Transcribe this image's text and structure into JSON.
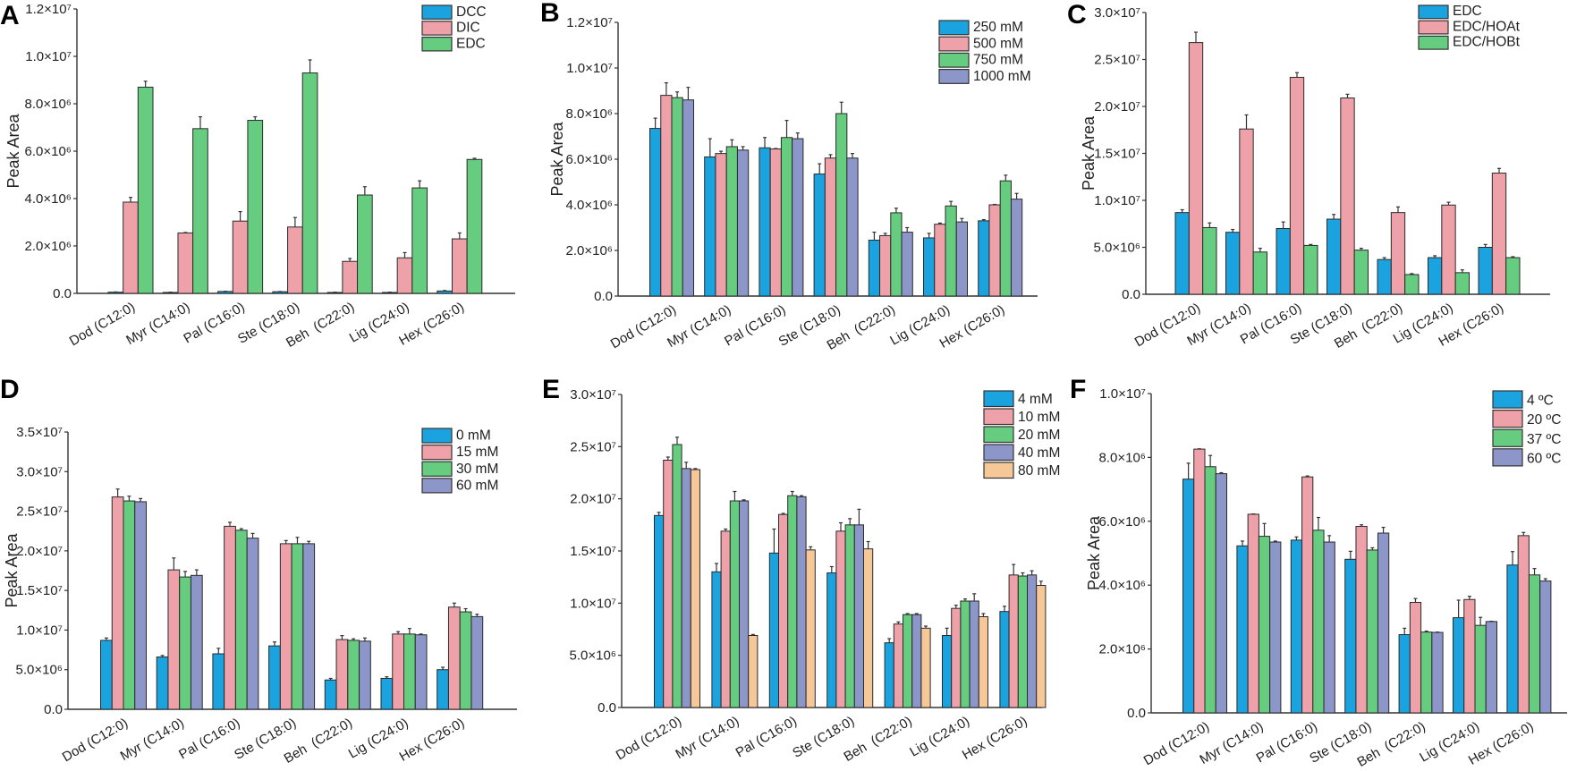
{
  "chart_data": [
    {
      "panel": "A",
      "type": "bar",
      "ylabel": "Peak Area",
      "legend_position": "top-right",
      "categories": [
        "Dod (C12:0)",
        "Myr (C14:0)",
        "Pal (C16:0)",
        "Ste (C18:0)",
        "Beh  (C22:0)",
        "Lig (C24:0)",
        "Hex (C26:0)"
      ],
      "unit_multiplier": 1000000.0,
      "ylim": [
        0,
        12
      ],
      "yticks": {
        "values": [
          0,
          2,
          4,
          6,
          8,
          10,
          12
        ],
        "labels": [
          "0.0",
          "2.0×10⁶",
          "4.0×10⁶",
          "6.0×10⁶",
          "8.0×10⁶",
          "1.0×10⁷",
          "1.2×10⁷"
        ]
      },
      "series": [
        {
          "name": "DCC",
          "color": "#1ba3e0",
          "values": [
            0.05,
            0.04,
            0.08,
            0.07,
            0.04,
            0.04,
            0.1
          ],
          "errors": [
            0.01,
            0.01,
            0.01,
            0.01,
            0.01,
            0.01,
            0.02
          ]
        },
        {
          "name": "DIC",
          "color": "#eea1a8",
          "values": [
            3.85,
            2.55,
            3.05,
            2.8,
            1.35,
            1.5,
            2.3
          ],
          "errors": [
            0.2,
            0.02,
            0.4,
            0.4,
            0.12,
            0.22,
            0.25
          ]
        },
        {
          "name": "EDC",
          "color": "#66cc80",
          "values": [
            8.7,
            6.95,
            7.3,
            9.3,
            4.15,
            4.45,
            5.65
          ],
          "errors": [
            0.25,
            0.5,
            0.15,
            0.55,
            0.35,
            0.3,
            0.05
          ]
        }
      ]
    },
    {
      "panel": "B",
      "type": "bar",
      "ylabel": "Peak Area",
      "legend_position": "top-right",
      "categories": [
        "Dod (C12:0)",
        "Myr (C14:0)",
        "Pal (C16:0)",
        "Ste (C18:0)",
        "Beh  (C22:0)",
        "Lig (C24:0)",
        "Hex (C26:0)"
      ],
      "unit_multiplier": 1000000.0,
      "ylim": [
        0,
        12
      ],
      "yticks": {
        "values": [
          0,
          2,
          4,
          6,
          8,
          10,
          12
        ],
        "labels": [
          "0.0",
          "2.0×10⁶",
          "4.0×10⁶",
          "6.0×10⁶",
          "8.0×10⁶",
          "1.0×10⁷",
          "1.2×10⁷"
        ]
      },
      "series": [
        {
          "name": "250 mM",
          "color": "#1ba3e0",
          "values": [
            7.35,
            6.1,
            6.5,
            5.35,
            2.45,
            2.55,
            3.3
          ],
          "errors": [
            0.45,
            0.8,
            0.45,
            0.45,
            0.35,
            0.2,
            0.05
          ]
        },
        {
          "name": "500 mM",
          "color": "#eea1a8",
          "values": [
            8.8,
            6.25,
            6.45,
            6.05,
            2.65,
            3.15,
            4.0
          ],
          "errors": [
            0.55,
            0.1,
            0.02,
            0.15,
            0.1,
            0.05,
            0.02
          ]
        },
        {
          "name": "750 mM",
          "color": "#66cc80",
          "values": [
            8.7,
            6.55,
            6.95,
            8.0,
            3.65,
            3.95,
            5.05
          ],
          "errors": [
            0.25,
            0.3,
            0.75,
            0.5,
            0.2,
            0.2,
            0.25
          ]
        },
        {
          "name": "1000 mM",
          "color": "#8c96c8",
          "values": [
            8.6,
            6.4,
            6.9,
            6.05,
            2.8,
            3.25,
            4.25
          ],
          "errors": [
            0.55,
            0.15,
            0.25,
            0.2,
            0.2,
            0.15,
            0.25
          ]
        }
      ]
    },
    {
      "panel": "C",
      "type": "bar",
      "ylabel": "Peak Area",
      "legend_position": "top-right",
      "categories": [
        "Dod (C12:0)",
        "Myr (C14:0)",
        "Pal (C16:0)",
        "Ste (C18:0)",
        "Beh  (C22:0)",
        "Lig (C24:0)",
        "Hex (C26:0)"
      ],
      "unit_multiplier": 10000000.0,
      "ylim": [
        0,
        3
      ],
      "yticks": {
        "values": [
          0,
          0.5,
          1,
          1.5,
          2,
          2.5,
          3
        ],
        "labels": [
          "0.0",
          "5.0×10⁶",
          "1.0×10⁷",
          "1.5×10⁷",
          "2.0×10⁷",
          "2.5×10⁷",
          "3.0×10⁷"
        ]
      },
      "series": [
        {
          "name": "EDC",
          "color": "#1ba3e0",
          "values": [
            0.87,
            0.66,
            0.7,
            0.8,
            0.37,
            0.39,
            0.5
          ],
          "errors": [
            0.03,
            0.03,
            0.07,
            0.05,
            0.02,
            0.02,
            0.03
          ]
        },
        {
          "name": "EDC/HOAt",
          "color": "#eea1a8",
          "values": [
            2.68,
            1.76,
            2.31,
            2.09,
            0.87,
            0.95,
            1.29
          ],
          "errors": [
            0.11,
            0.15,
            0.05,
            0.04,
            0.06,
            0.03,
            0.05
          ]
        },
        {
          "name": "EDC/HOBt",
          "color": "#66cc80",
          "values": [
            0.71,
            0.45,
            0.52,
            0.47,
            0.21,
            0.23,
            0.39
          ],
          "errors": [
            0.05,
            0.04,
            0.01,
            0.02,
            0.01,
            0.03,
            0.01
          ]
        }
      ]
    },
    {
      "panel": "D",
      "type": "bar",
      "ylabel": "Peak Area",
      "legend_position": "top-right",
      "categories": [
        "Dod (C12:0)",
        "Myr (C14:0)",
        "Pal (C16:0)",
        "Ste (C18:0)",
        "Beh  (C22:0)",
        "Lig (C24:0)",
        "Hex (C26:0)"
      ],
      "unit_multiplier": 10000000.0,
      "ylim": [
        0,
        3.5
      ],
      "yticks": {
        "values": [
          0,
          0.5,
          1,
          1.5,
          2,
          2.5,
          3,
          3.5
        ],
        "labels": [
          "0.0",
          "5.0×10⁶",
          "1.0×10⁷",
          "1.5×10⁷",
          "2.0×10⁷",
          "2.5×10⁷",
          "3.0×10⁷",
          "3.5×10⁷"
        ]
      },
      "series": [
        {
          "name": "0 mM",
          "color": "#1ba3e0",
          "values": [
            0.87,
            0.66,
            0.7,
            0.8,
            0.37,
            0.39,
            0.5
          ],
          "errors": [
            0.03,
            0.02,
            0.07,
            0.05,
            0.02,
            0.02,
            0.03
          ]
        },
        {
          "name": "15 mM",
          "color": "#eea1a8",
          "values": [
            2.68,
            1.76,
            2.31,
            2.09,
            0.88,
            0.95,
            1.29
          ],
          "errors": [
            0.1,
            0.15,
            0.05,
            0.04,
            0.05,
            0.03,
            0.05
          ]
        },
        {
          "name": "30 mM",
          "color": "#66cc80",
          "values": [
            2.63,
            1.67,
            2.26,
            2.09,
            0.87,
            0.95,
            1.23
          ],
          "errors": [
            0.06,
            0.07,
            0.02,
            0.08,
            0.02,
            0.07,
            0.04
          ]
        },
        {
          "name": "60 mM",
          "color": "#8c96c8",
          "values": [
            2.62,
            1.69,
            2.16,
            2.09,
            0.86,
            0.94,
            1.17
          ],
          "errors": [
            0.04,
            0.07,
            0.06,
            0.03,
            0.04,
            0.01,
            0.03
          ]
        }
      ]
    },
    {
      "panel": "E",
      "type": "bar",
      "ylabel": "",
      "legend_position": "top-right",
      "categories": [
        "Dod (C12:0)",
        "Myr (C14:0)",
        "Pal (C16:0)",
        "Ste (C18:0)",
        "Beh  (C22:0)",
        "Lig (C24:0)",
        "Hex (C26:0)"
      ],
      "unit_multiplier": 10000000.0,
      "ylim": [
        0,
        3
      ],
      "yticks": {
        "values": [
          0,
          0.5,
          1,
          1.5,
          2,
          2.5,
          3
        ],
        "labels": [
          "0.0",
          "5.0×10⁶",
          "1.0×10⁷",
          "1.5×10⁷",
          "2.0×10⁷",
          "2.5×10⁷",
          "3.0×10⁷"
        ]
      },
      "series": [
        {
          "name": "4 mM",
          "color": "#1ba3e0",
          "values": [
            1.84,
            1.3,
            1.48,
            1.29,
            0.62,
            0.69,
            0.92
          ],
          "errors": [
            0.03,
            0.08,
            0.23,
            0.06,
            0.04,
            0.07,
            0.05
          ]
        },
        {
          "name": "10 mM",
          "color": "#eea1a8",
          "values": [
            2.37,
            1.69,
            1.85,
            1.69,
            0.8,
            0.95,
            1.27
          ],
          "errors": [
            0.03,
            0.02,
            0.01,
            0.08,
            0.02,
            0.03,
            0.1
          ]
        },
        {
          "name": "20 mM",
          "color": "#66cc80",
          "values": [
            2.52,
            1.98,
            2.03,
            1.75,
            0.89,
            1.02,
            1.26
          ],
          "errors": [
            0.07,
            0.09,
            0.04,
            0.06,
            0.01,
            0.02,
            0.03
          ]
        },
        {
          "name": "40 mM",
          "color": "#8c96c8",
          "values": [
            2.29,
            1.98,
            2.02,
            1.75,
            0.89,
            1.02,
            1.27
          ],
          "errors": [
            0.06,
            0.01,
            0.01,
            0.15,
            0.01,
            0.07,
            0.04
          ]
        },
        {
          "name": "80 mM",
          "color": "#f6c898",
          "values": [
            2.28,
            0.69,
            1.51,
            1.52,
            0.76,
            0.87,
            1.17
          ],
          "errors": [
            0.01,
            0.01,
            0.03,
            0.07,
            0.02,
            0.03,
            0.04
          ]
        }
      ]
    },
    {
      "panel": "F",
      "type": "bar",
      "ylabel": "Peak Area",
      "legend_position": "top-right",
      "categories": [
        "Dod (C12:0)",
        "Myr (C14:0)",
        "Pal (C16:0)",
        "Ste (C18:0)",
        "Beh  (C22:0)",
        "Lig (C24:0)",
        "Hex (C26:0)"
      ],
      "unit_multiplier": 1000000.0,
      "ylim": [
        0,
        10
      ],
      "yticks": {
        "values": [
          0,
          2,
          4,
          6,
          8,
          10
        ],
        "labels": [
          "0.0",
          "2.0×10⁶",
          "4.0×10⁶",
          "6.0×10⁶",
          "8.0×10⁶",
          "1.0×10⁷"
        ]
      },
      "series": [
        {
          "name": "4 ºC",
          "color": "#1ba3e0",
          "values": [
            7.32,
            5.23,
            5.41,
            4.81,
            2.45,
            2.98,
            4.63
          ],
          "errors": [
            0.5,
            0.15,
            0.1,
            0.25,
            0.2,
            0.55,
            0.42
          ]
        },
        {
          "name": "20 ºC",
          "color": "#eea1a8",
          "values": [
            8.26,
            6.22,
            7.39,
            5.84,
            3.46,
            3.55,
            5.55
          ],
          "errors": [
            0.01,
            0.01,
            0.03,
            0.05,
            0.12,
            0.1,
            0.1
          ]
        },
        {
          "name": "37 ºC",
          "color": "#66cc80",
          "values": [
            7.71,
            5.53,
            5.72,
            5.1,
            2.53,
            2.74,
            4.32
          ],
          "errors": [
            0.35,
            0.4,
            0.4,
            0.07,
            0.03,
            0.25,
            0.2
          ]
        },
        {
          "name": "60 ºC",
          "color": "#8c96c8",
          "values": [
            7.49,
            5.35,
            5.35,
            5.63,
            2.52,
            2.86,
            4.13
          ],
          "errors": [
            0.03,
            0.03,
            0.2,
            0.18,
            0.01,
            0.01,
            0.07
          ]
        }
      ]
    }
  ]
}
